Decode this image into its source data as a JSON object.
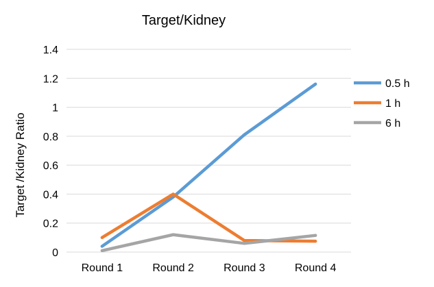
{
  "chart_data": {
    "type": "line",
    "title": "Target/Kidney",
    "xlabel": "",
    "ylabel": "Target /Kidney Ratio",
    "categories": [
      "Round 1",
      "Round 2",
      "Round 3",
      "Round 4"
    ],
    "ylim": [
      0,
      1.4
    ],
    "yticks": [
      0,
      0.2,
      0.4,
      0.6,
      0.8,
      1,
      1.2,
      1.4
    ],
    "ytick_labels": [
      "0",
      "0.2",
      "0.4",
      "0.6",
      "0.8",
      "1",
      "1.2",
      "1.4"
    ],
    "grid": true,
    "legend_position": "right",
    "series": [
      {
        "name": "0.5 h",
        "color": "#5B9BD5",
        "values": [
          0.04,
          0.38,
          0.81,
          1.16
        ]
      },
      {
        "name": "1 h",
        "color": "#ED7D31",
        "values": [
          0.1,
          0.4,
          0.08,
          0.075
        ]
      },
      {
        "name": "6 h",
        "color": "#A5A5A5",
        "values": [
          0.01,
          0.12,
          0.06,
          0.115
        ]
      }
    ]
  }
}
